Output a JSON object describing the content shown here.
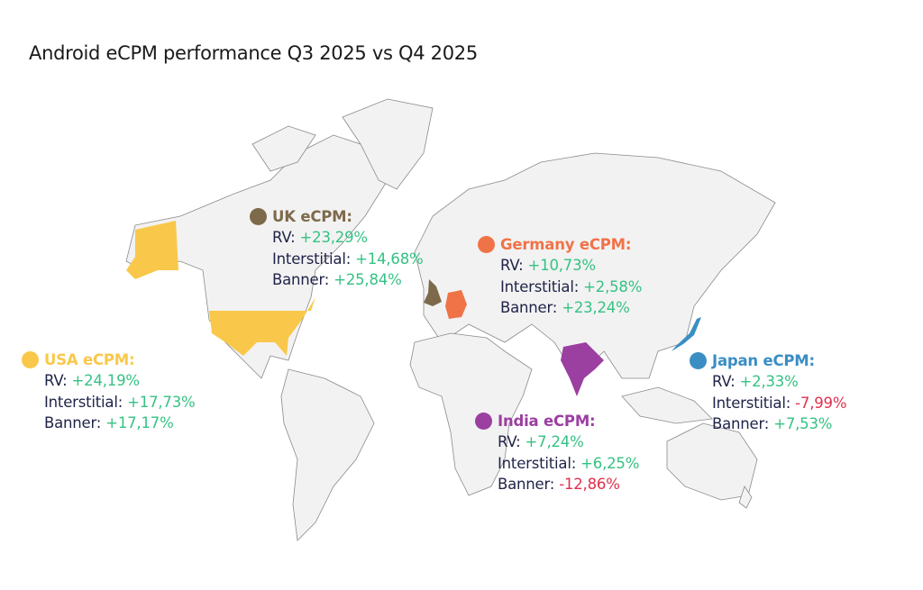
{
  "title": "Android eCPM performance Q3 2025 vs Q4 2025",
  "colors": {
    "positive": "#35c283",
    "negative": "#e0304e",
    "text": "#1f2348",
    "land": "#f2f2f2"
  },
  "regions": [
    {
      "id": "uk",
      "title": "UK eCPM:",
      "color": "#7d6a4b",
      "rows": [
        {
          "label": "RV:",
          "value": "+23,29%"
        },
        {
          "label": "Interstitial:",
          "value": "+14,68%"
        },
        {
          "label": "Banner:",
          "value": "+25,84%"
        }
      ]
    },
    {
      "id": "germany",
      "title": "Germany eCPM:",
      "color": "#f07348",
      "rows": [
        {
          "label": "RV:",
          "value": "+10,73%"
        },
        {
          "label": "Interstitial:",
          "value": "+2,58%"
        },
        {
          "label": "Banner:",
          "value": "+23,24%"
        }
      ]
    },
    {
      "id": "usa",
      "title": "USA eCPM:",
      "color": "#f9c84a",
      "rows": [
        {
          "label": "RV:",
          "value": "+24,19%"
        },
        {
          "label": "Interstitial:",
          "value": "+17,73%"
        },
        {
          "label": "Banner:",
          "value": "+17,17%"
        }
      ]
    },
    {
      "id": "japan",
      "title": "Japan eCPM:",
      "color": "#3a8ec4",
      "rows": [
        {
          "label": "RV:",
          "value": "+2,33%"
        },
        {
          "label": "Interstitial:",
          "value": "-7,99%"
        },
        {
          "label": "Banner:",
          "value": "+7,53%"
        }
      ]
    },
    {
      "id": "india",
      "title": "India eCPM:",
      "color": "#9b3fa0",
      "rows": [
        {
          "label": "RV:",
          "value": "+7,24%"
        },
        {
          "label": "Interstitial:",
          "value": "+6,25%"
        },
        {
          "label": "Banner:",
          "value": "-12,86%"
        }
      ]
    }
  ]
}
